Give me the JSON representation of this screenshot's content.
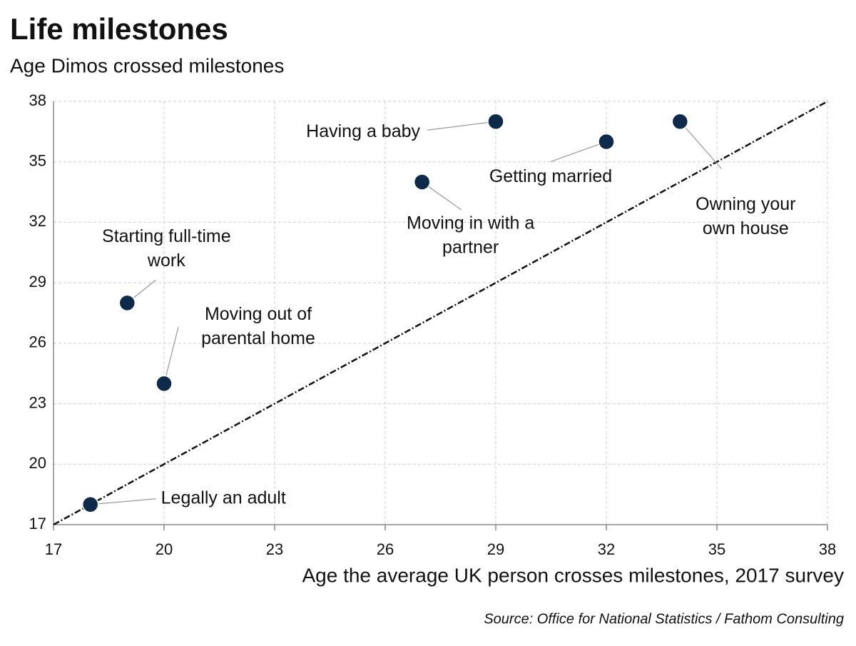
{
  "chart_data": {
    "type": "scatter",
    "title": "Life milestones",
    "subtitle": "Age Dimos crossed milestones",
    "x_label": "Age the average UK person crosses milestones, 2017 survey",
    "source": "Source: Office for National Statistics / Fathom Consulting",
    "xlim": [
      17,
      38
    ],
    "xticks": [
      17,
      20,
      23,
      26,
      29,
      32,
      35,
      38
    ],
    "ylim": [
      17,
      38
    ],
    "yticks": [
      17,
      20,
      23,
      26,
      29,
      32,
      35,
      38
    ],
    "grid": true,
    "series": [
      {
        "color": "#0d2a4a",
        "x": [
          18,
          19,
          20,
          27,
          29,
          32,
          34
        ],
        "y": [
          18,
          28,
          24,
          34,
          37,
          36,
          37
        ],
        "labels": [
          [
            "Legally an adult"
          ],
          [
            "Starting full-time",
            "work"
          ],
          [
            "Moving out of",
            "parental home"
          ],
          [
            "Moving in with a",
            "partner"
          ],
          [
            "Having a baby"
          ],
          [
            "Getting married"
          ],
          [
            "Owning your",
            "own house"
          ]
        ]
      }
    ],
    "reference_line": {
      "color": "#111111",
      "x": [
        17,
        38
      ],
      "y": [
        17,
        38
      ]
    }
  }
}
